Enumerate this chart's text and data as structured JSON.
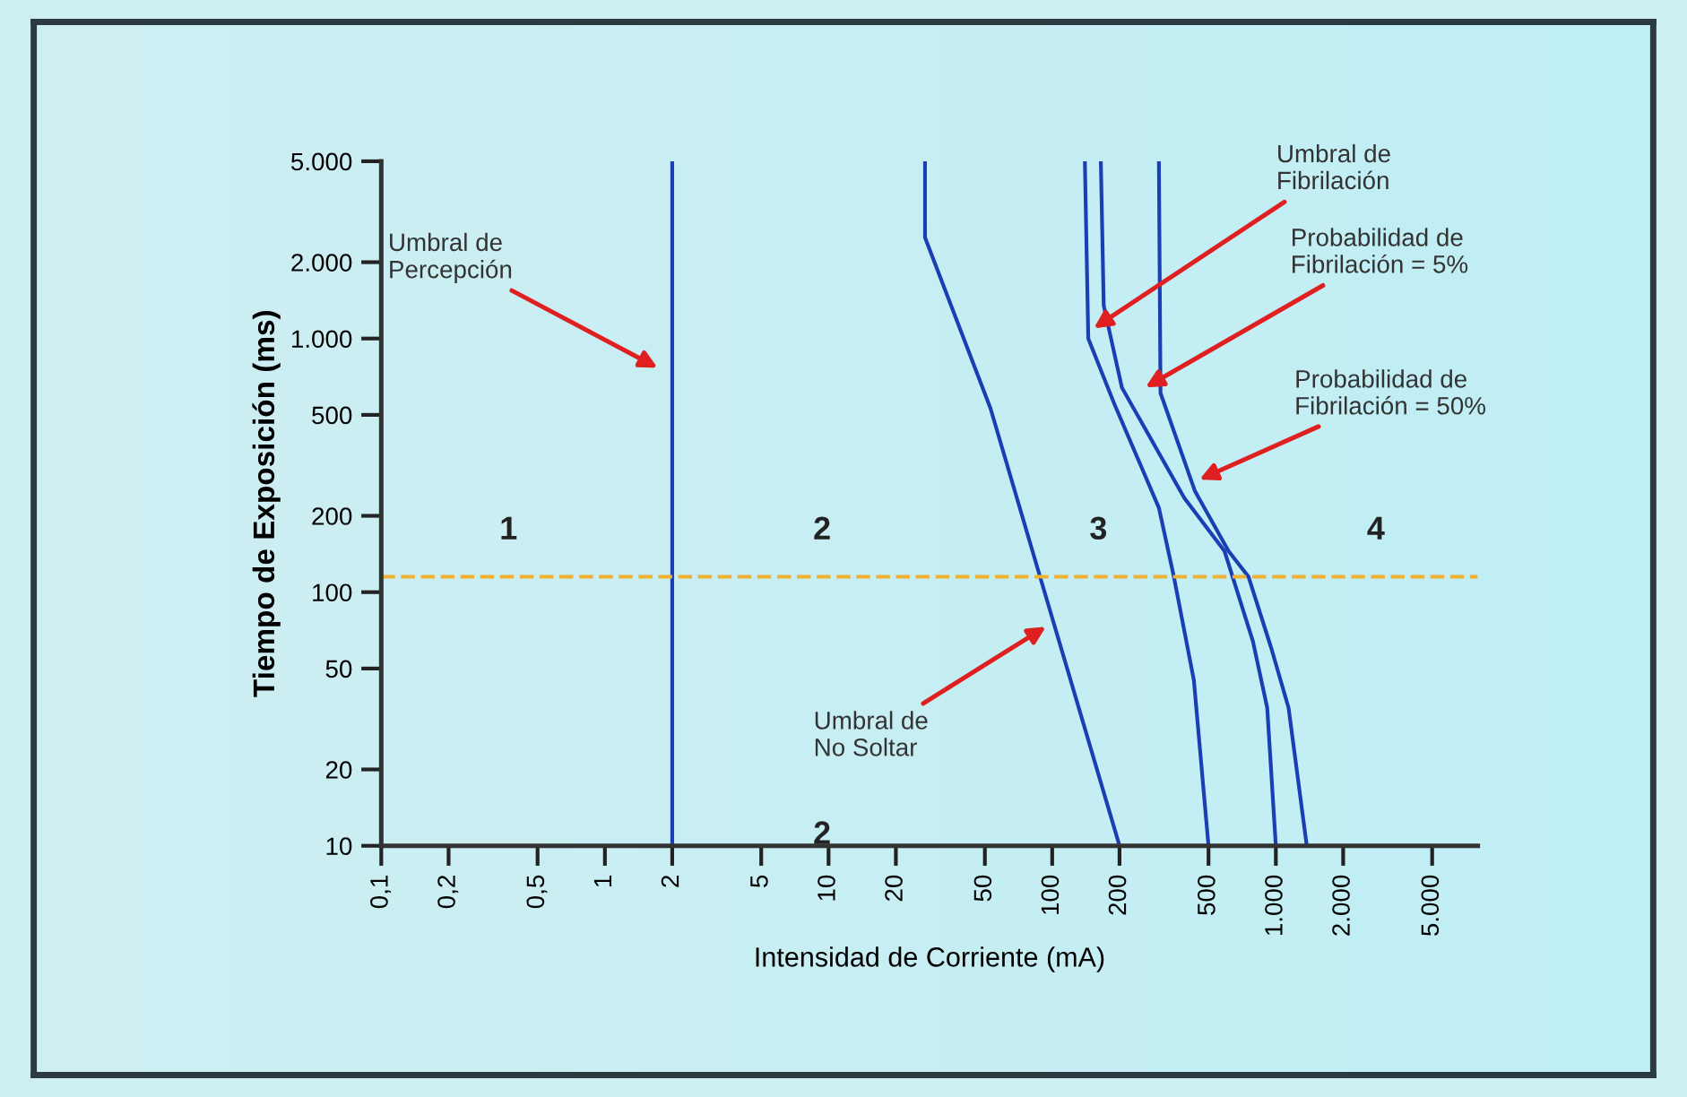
{
  "chart_data": {
    "type": "line",
    "xlabel": "Intensidad de Corriente (mA)",
    "ylabel": "Tiempo de Exposición (ms)",
    "log": "xy",
    "grid": false,
    "marker": "none",
    "line_style": "solid",
    "xlim": [
      0.1,
      8000
    ],
    "ylim": [
      10,
      5000
    ],
    "xticks": [
      {
        "value": 0.1,
        "label": "0,1"
      },
      {
        "value": 0.2,
        "label": "0,2"
      },
      {
        "value": 0.5,
        "label": "0,5"
      },
      1,
      2,
      5,
      10,
      20,
      50,
      100,
      200,
      500,
      {
        "value": 1000,
        "label": "1.000"
      },
      {
        "value": 2000,
        "label": "2.000"
      },
      {
        "value": 5000,
        "label": "5.000"
      }
    ],
    "yticks": [
      10,
      20,
      50,
      100,
      200,
      500,
      {
        "value": 1000,
        "label": "1.000"
      },
      {
        "value": 2000,
        "label": "2.000"
      },
      {
        "value": 5000,
        "label": "5.000"
      }
    ],
    "series": [
      {
        "color": "#1a3fb5",
        "x": [
          2,
          2
        ],
        "values": [
          10,
          5000
        ]
      },
      {
        "color": "#1a3fb5",
        "x": [
          27,
          27,
          53,
          88,
          200
        ],
        "values": [
          5000,
          2500,
          530,
          116,
          10
        ]
      },
      {
        "color": "#1a3fb5",
        "x": [
          140,
          145,
          190,
          300,
          350,
          430,
          500
        ],
        "values": [
          5000,
          1000,
          550,
          215,
          115,
          45,
          10
        ]
      },
      {
        "color": "#1a3fb5",
        "x": [
          165,
          170,
          205,
          390,
          590,
          790,
          915,
          1000
        ],
        "values": [
          5000,
          1350,
          640,
          235,
          145,
          64,
          35,
          10
        ]
      },
      {
        "color": "#1a3fb5",
        "x": [
          300,
          305,
          435,
          615,
          755,
          955,
          1140,
          1375
        ],
        "values": [
          5000,
          610,
          250,
          145,
          115,
          60,
          35,
          10
        ]
      }
    ],
    "ref_lines": [
      {
        "axis": "y",
        "value": 115,
        "color": "#f0b030",
        "line_style": "dashed"
      }
    ],
    "annotations": [
      "Umbral de\nPercepción",
      "Umbral de\nNo Soltar",
      "Umbral de\nFibrilación",
      "Probabilidad de\nFibrilación = 5%",
      "Probabilidad de\nFibrilación = 50%",
      "1",
      "2",
      "3",
      "4",
      "2"
    ]
  }
}
